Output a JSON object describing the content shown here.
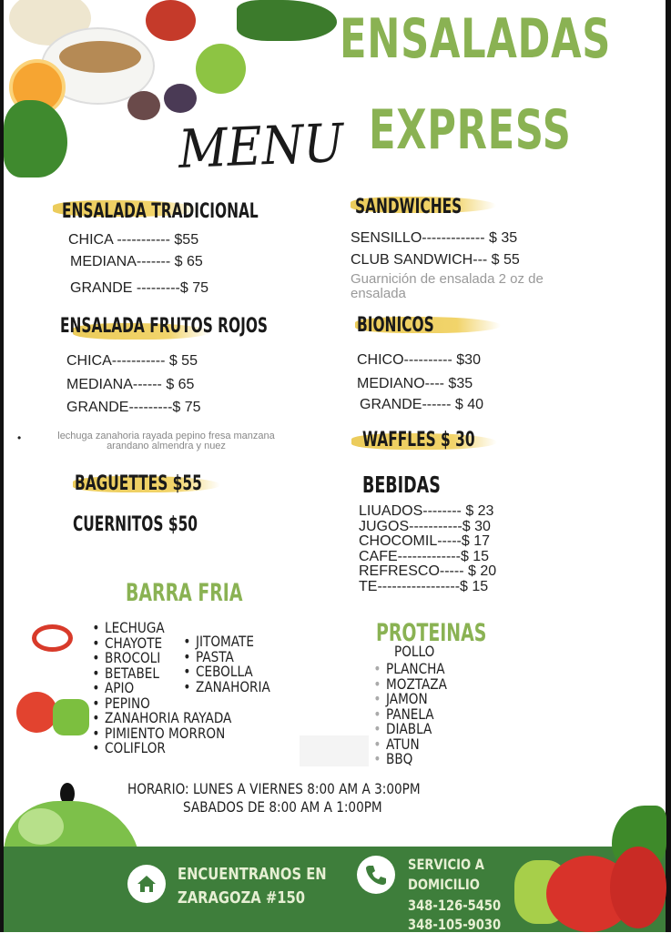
{
  "title": {
    "line1": "ENSALADAS",
    "line2": "EXPRESS",
    "menu": "MENU"
  },
  "colors": {
    "accent_green": "#8ab253",
    "band_green": "#3e7e3b",
    "brush_yellow": "#efcd55"
  },
  "left": {
    "tradicional": {
      "heading": "ENSALADA TRADICIONAL",
      "items": [
        "CHICA  ----------- $55",
        "MEDIANA------- $ 65",
        "GRANDE ---------$ 75"
      ]
    },
    "frutos_rojos": {
      "heading": "ENSALADA FRUTOS ROJOS",
      "items": [
        "CHICA----------- $ 55",
        "MEDIANA------ $ 65",
        "GRANDE---------$ 75"
      ],
      "ingredients_line1": "lechuga  zanahoria rayada  pepino  fresa  manzana",
      "ingredients_line2": "arandano  almendra  y nuez"
    },
    "baguettes": "BAGUETTES  $55",
    "cuernitos": "CUERNITOS   $50",
    "barra_fria": {
      "heading": "BARRA FRIA",
      "col1": [
        "LECHUGA",
        "CHAYOTE",
        "BROCOLI",
        "BETABEL",
        "APIO",
        "PEPINO",
        "ZANAHORIA RAYADA",
        "PIMIENTO MORRON",
        "COLIFLOR"
      ],
      "col2": [
        "JITOMATE",
        "PASTA",
        "CEBOLLA",
        "ZANAHORIA"
      ]
    }
  },
  "right": {
    "sandwiches": {
      "heading": "SANDWICHES",
      "items": [
        "SENSILLO------------- $ 35",
        "CLUB SANDWICH--- $ 55"
      ],
      "note_line1": "Guarnición de ensalada 2 oz de",
      "note_line2": "ensalada"
    },
    "bionicos": {
      "heading": "BIONICOS",
      "items": [
        "CHICO---------- $30",
        "MEDIANO---- $35",
        "GRANDE------ $ 40"
      ]
    },
    "waffles": "WAFFLES  $ 30",
    "bebidas": {
      "heading": "BEBIDAS",
      "items": [
        "LIUADOS-------- $ 23",
        "JUGOS-----------$ 30",
        "CHOCOMIL-----$ 17",
        "CAFE-------------$ 15",
        "REFRESCO----- $ 20",
        "TE-----------------$ 15"
      ]
    },
    "proteinas": {
      "heading": "PROTEINAS",
      "sub": "POLLO",
      "items": [
        "PLANCHA",
        "MOZTAZA",
        "JAMON",
        "PANELA",
        "DIABLA",
        "ATUN",
        "BBQ"
      ]
    }
  },
  "horario": {
    "line1": "HORARIO:  LUNES A VIERNES 8:00 AM A 3:00PM",
    "line2": "SABADOS DE 8:00 AM A 1:00PM"
  },
  "footer": {
    "location_line1": "ENCUENTRANOS EN",
    "location_line2": "ZARAGOZA #150",
    "delivery_line1": "SERVICIO A",
    "delivery_line2": "DOMICILIO",
    "phone1": "348-126-5450",
    "phone2": "348-105-9030",
    "home_icon": "home-icon",
    "phone_icon": "phone-icon"
  }
}
